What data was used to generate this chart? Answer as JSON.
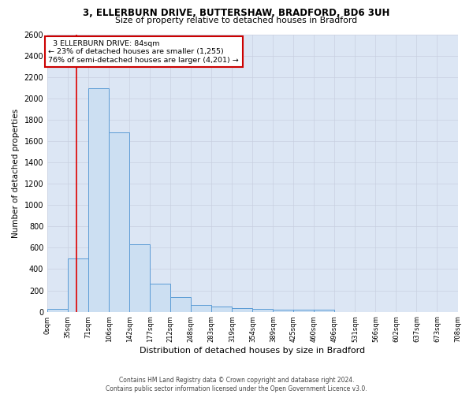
{
  "title1": "3, ELLERBURN DRIVE, BUTTERSHAW, BRADFORD, BD6 3UH",
  "title2": "Size of property relative to detached houses in Bradford",
  "xlabel": "Distribution of detached houses by size in Bradford",
  "ylabel": "Number of detached properties",
  "footnote": "Contains HM Land Registry data © Crown copyright and database right 2024.\nContains public sector information licensed under the Open Government Licence v3.0.",
  "bin_labels": [
    "0sqm",
    "35sqm",
    "71sqm",
    "106sqm",
    "142sqm",
    "177sqm",
    "212sqm",
    "248sqm",
    "283sqm",
    "319sqm",
    "354sqm",
    "389sqm",
    "425sqm",
    "460sqm",
    "496sqm",
    "531sqm",
    "566sqm",
    "602sqm",
    "637sqm",
    "673sqm",
    "708sqm"
  ],
  "bar_heights": [
    25,
    500,
    2100,
    1680,
    630,
    265,
    140,
    65,
    50,
    35,
    30,
    20,
    20,
    20,
    0,
    0,
    0,
    0,
    0,
    0
  ],
  "bar_color": "#ccdff2",
  "bar_edge_color": "#5b9bd5",
  "red_line_x": 1.42,
  "red_line_color": "#dd0000",
  "annotation_text": "  3 ELLERBURN DRIVE: 84sqm\n← 23% of detached houses are smaller (1,255)\n76% of semi-detached houses are larger (4,201) →",
  "annotation_box_color": "#cc0000",
  "ylim": [
    0,
    2600
  ],
  "yticks": [
    0,
    200,
    400,
    600,
    800,
    1000,
    1200,
    1400,
    1600,
    1800,
    2000,
    2200,
    2400,
    2600
  ],
  "grid_color": "#c8d0e0",
  "background_color": "#dce6f4"
}
